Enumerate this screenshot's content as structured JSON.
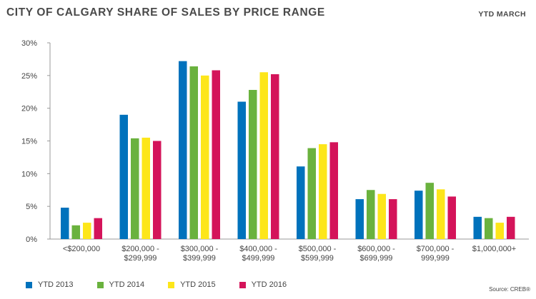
{
  "header": {
    "title": "CITY OF CALGARY SHARE OF SALES BY PRICE RANGE",
    "subtitle": "YTD MARCH"
  },
  "source": "Source: CREB®",
  "colors": {
    "YTD 2013": "#0072bc",
    "YTD 2014": "#6ab23e",
    "YTD 2015": "#fde61a",
    "YTD 2016": "#d4145a"
  },
  "chart_data": {
    "type": "bar",
    "title": "CITY OF CALGARY SHARE OF SALES BY PRICE RANGE",
    "subtitle": "YTD MARCH",
    "xlabel": "",
    "ylabel": "",
    "ylim": [
      0,
      30
    ],
    "yticks": [
      "0%",
      "5%",
      "10%",
      "15%",
      "20%",
      "25%",
      "30%"
    ],
    "categories": [
      [
        "<$200,000"
      ],
      [
        "$200,000 -",
        "$299,999"
      ],
      [
        "$300,000 -",
        "$399,999"
      ],
      [
        "$400,000 -",
        "$499,999"
      ],
      [
        "$500,000 -",
        "$599,999"
      ],
      [
        "$600,000 -",
        "$699,999"
      ],
      [
        "$700,000 -",
        "999,999"
      ],
      [
        "$1,000,000+"
      ]
    ],
    "series": [
      {
        "name": "YTD 2013",
        "values": [
          4.8,
          19.0,
          27.2,
          21.0,
          11.1,
          6.1,
          7.4,
          3.4
        ]
      },
      {
        "name": "YTD 2014",
        "values": [
          2.1,
          15.4,
          26.4,
          22.8,
          13.9,
          7.5,
          8.6,
          3.2
        ]
      },
      {
        "name": "YTD 2015",
        "values": [
          2.5,
          15.5,
          25.0,
          25.5,
          14.5,
          6.9,
          7.6,
          2.5
        ]
      },
      {
        "name": "YTD 2016",
        "values": [
          3.2,
          15.0,
          25.8,
          25.2,
          14.8,
          6.1,
          6.5,
          3.4
        ]
      }
    ],
    "legend": "bottom-left",
    "grid": false
  }
}
